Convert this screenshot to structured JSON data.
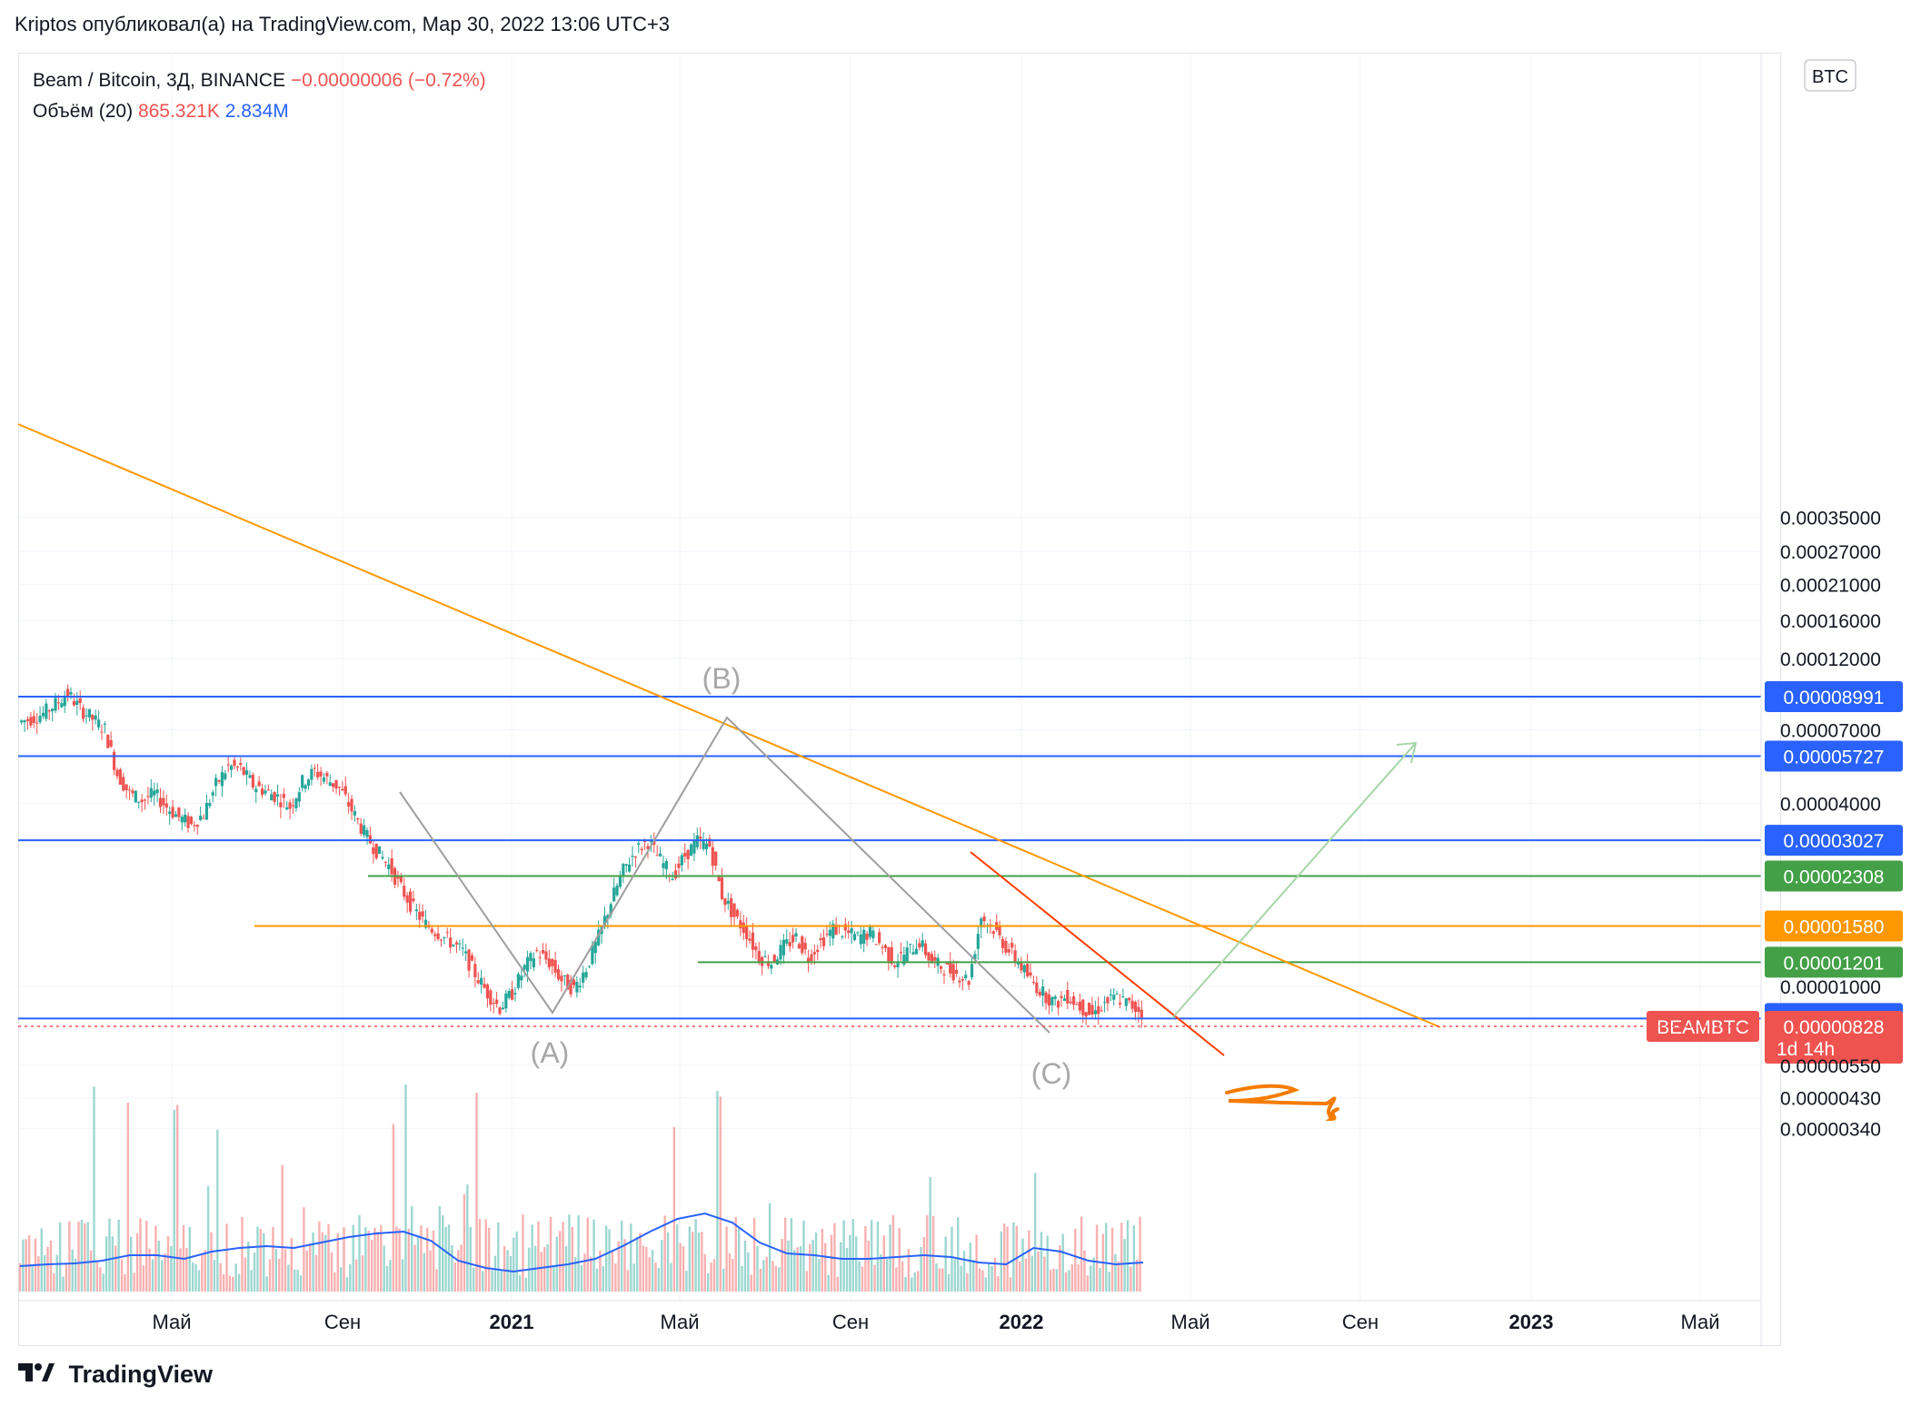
{
  "header": {
    "publish_text": "Kriptos опубликовал(а) на TradingView.com, Мар 30, 2022 13:06 UTC+3"
  },
  "legend": {
    "symbol": "Beam / Bitcoin, 3Д, BINANCE",
    "change": "−0.00000006 (−0.72%)",
    "volume_label": "Объём (20)",
    "volume_value": "865.321K",
    "volume_ma": "2.834M"
  },
  "currency_badge": "BTC",
  "brand": "TradingView",
  "colors": {
    "up": "#26a69a",
    "down": "#ef5350",
    "level_blue": "#2962ff",
    "level_green": "#43a047",
    "level_orange": "#ff9800",
    "trend_orange": "#ff9800",
    "trend_red": "#ff3d00",
    "wave_gray": "#9e9e9e",
    "target_green": "#a5d6a7"
  },
  "chart_data": {
    "type": "candlestick",
    "title": "Beam / Bitcoin, 3Д, BINANCE",
    "y_scale": "log",
    "y_ticks": [
      "0.00035000",
      "0.00027000",
      "0.00021000",
      "0.00016000",
      "0.00012000",
      "0.00007000",
      "0.00004000",
      "0.00001000",
      "0.00000550",
      "0.00000430",
      "0.00000340"
    ],
    "x_ticks": [
      "Май",
      "Сен",
      "2021",
      "Май",
      "Сен",
      "2022",
      "Май",
      "Сен",
      "2023",
      "Май"
    ],
    "levels": [
      {
        "label": "0.00008991",
        "color": "#2962ff",
        "value": 8.991e-05
      },
      {
        "label": "0.00005727",
        "color": "#2962ff",
        "value": 5.727e-05
      },
      {
        "label": "0.00003027",
        "color": "#2962ff",
        "value": 3.027e-05
      },
      {
        "label": "0.00002308",
        "color": "#43a047",
        "value": 2.308e-05
      },
      {
        "label": "0.00001580",
        "color": "#ff9800",
        "value": 1.58e-05
      },
      {
        "label": "0.00001201",
        "color": "#43a047",
        "value": 1.201e-05
      },
      {
        "label": "0.00000784",
        "color": "#2962ff",
        "value": 7.84e-06
      }
    ],
    "last_price": {
      "symbol": "BEAMBTC",
      "value": "0.00000828",
      "countdown": "1d 14h"
    },
    "wave_labels": [
      "(A)",
      "(B)",
      "(C)"
    ],
    "close_series": [
      7.4e-05,
      7.6e-05,
      7.9e-05,
      8.5e-05,
      9.2e-05,
      8.2e-05,
      7.6e-05,
      7e-05,
      5e-05,
      4.3e-05,
      4.1e-05,
      4.3e-05,
      3.9e-05,
      3.6e-05,
      3.4e-05,
      3.7e-05,
      4.6e-05,
      5.3e-05,
      5.2e-05,
      4.6e-05,
      4.4e-05,
      4.2e-05,
      3.9e-05,
      4.7e-05,
      5.1e-05,
      4.8e-05,
      4.5e-05,
      3.8e-05,
      3.2e-05,
      2.8e-05,
      2.5e-05,
      2.1e-05,
      1.8e-05,
      1.6e-05,
      1.5e-05,
      1.4e-05,
      1.3e-05,
      1.1e-05,
      9.5e-06,
      8.5e-06,
      9.5e-06,
      1.15e-05,
      1.3e-05,
      1.2e-05,
      1.05e-05,
      9.8e-06,
      1.15e-05,
      1.45e-05,
      1.9e-05,
      2.4e-05,
      2.8e-05,
      3e-05,
      2.6e-05,
      2.3e-05,
      2.7e-05,
      3e-05,
      2.9e-05,
      2e-05,
      1.7e-05,
      1.5e-05,
      1.25e-05,
      1.2e-05,
      1.35e-05,
      1.45e-05,
      1.25e-05,
      1.4e-05,
      1.55e-05,
      1.5e-05,
      1.45e-05,
      1.5e-05,
      1.35e-05,
      1.2e-05,
      1.3e-05,
      1.4e-05,
      1.2e-05,
      1.15e-05,
      1.1e-05,
      1.05e-05,
      1.7e-05,
      1.55e-05,
      1.35e-05,
      1.2e-05,
      1.05e-05,
      9.5e-06,
      8.8e-06,
      9.3e-06,
      8.6e-06,
      8.1e-06,
      8.8e-06,
      9.2e-06,
      8.7e-06,
      8.3e-06
    ],
    "volume_ma_series": [
      0.9,
      1.0,
      1.05,
      1.2,
      1.5,
      1.5,
      1.3,
      1.7,
      1.9,
      2.0,
      1.9,
      2.2,
      2.5,
      2.7,
      2.8,
      2.3,
      1.2,
      0.8,
      0.6,
      0.8,
      1.0,
      1.3,
      2.0,
      2.8,
      3.5,
      3.8,
      3.3,
      2.2,
      1.6,
      1.5,
      1.3,
      1.3,
      1.4,
      1.5,
      1.4,
      1.1,
      1.0,
      1.9,
      1.7,
      1.2,
      1.0,
      1.1
    ]
  }
}
